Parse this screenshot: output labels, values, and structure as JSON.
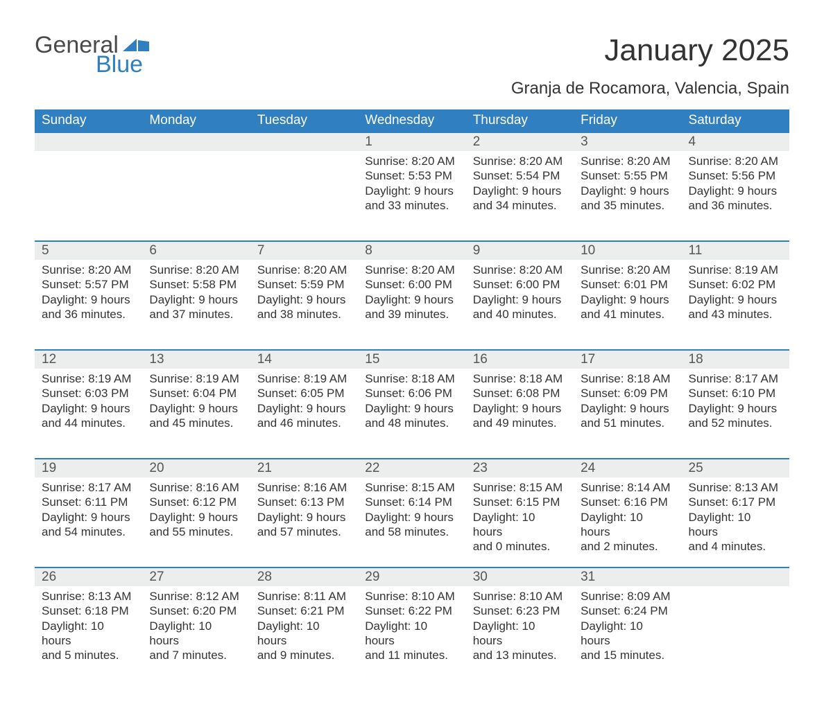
{
  "brand": {
    "word1": "General",
    "word2": "Blue",
    "accent_color": "#2f7fc1",
    "text_color": "#4a4a4a"
  },
  "header": {
    "title": "January 2025",
    "location": "Granja de Rocamora, Valencia, Spain"
  },
  "styling": {
    "page_bg": "#ffffff",
    "header_bar_bg": "#2f7fc1",
    "header_bar_text": "#ffffff",
    "daynum_bg": "#eceded",
    "daynum_border": "#2f7fc1",
    "body_text": "#333333",
    "title_fontsize": 44,
    "subtitle_fontsize": 24,
    "th_fontsize": 19,
    "cell_fontsize": 17
  },
  "weekdays": [
    "Sunday",
    "Monday",
    "Tuesday",
    "Wednesday",
    "Thursday",
    "Friday",
    "Saturday"
  ],
  "weeks": [
    [
      null,
      null,
      null,
      {
        "n": "1",
        "sr": "Sunrise: 8:20 AM",
        "ss": "Sunset: 5:53 PM",
        "d1": "Daylight: 9 hours",
        "d2": "and 33 minutes."
      },
      {
        "n": "2",
        "sr": "Sunrise: 8:20 AM",
        "ss": "Sunset: 5:54 PM",
        "d1": "Daylight: 9 hours",
        "d2": "and 34 minutes."
      },
      {
        "n": "3",
        "sr": "Sunrise: 8:20 AM",
        "ss": "Sunset: 5:55 PM",
        "d1": "Daylight: 9 hours",
        "d2": "and 35 minutes."
      },
      {
        "n": "4",
        "sr": "Sunrise: 8:20 AM",
        "ss": "Sunset: 5:56 PM",
        "d1": "Daylight: 9 hours",
        "d2": "and 36 minutes."
      }
    ],
    [
      {
        "n": "5",
        "sr": "Sunrise: 8:20 AM",
        "ss": "Sunset: 5:57 PM",
        "d1": "Daylight: 9 hours",
        "d2": "and 36 minutes."
      },
      {
        "n": "6",
        "sr": "Sunrise: 8:20 AM",
        "ss": "Sunset: 5:58 PM",
        "d1": "Daylight: 9 hours",
        "d2": "and 37 minutes."
      },
      {
        "n": "7",
        "sr": "Sunrise: 8:20 AM",
        "ss": "Sunset: 5:59 PM",
        "d1": "Daylight: 9 hours",
        "d2": "and 38 minutes."
      },
      {
        "n": "8",
        "sr": "Sunrise: 8:20 AM",
        "ss": "Sunset: 6:00 PM",
        "d1": "Daylight: 9 hours",
        "d2": "and 39 minutes."
      },
      {
        "n": "9",
        "sr": "Sunrise: 8:20 AM",
        "ss": "Sunset: 6:00 PM",
        "d1": "Daylight: 9 hours",
        "d2": "and 40 minutes."
      },
      {
        "n": "10",
        "sr": "Sunrise: 8:20 AM",
        "ss": "Sunset: 6:01 PM",
        "d1": "Daylight: 9 hours",
        "d2": "and 41 minutes."
      },
      {
        "n": "11",
        "sr": "Sunrise: 8:19 AM",
        "ss": "Sunset: 6:02 PM",
        "d1": "Daylight: 9 hours",
        "d2": "and 43 minutes."
      }
    ],
    [
      {
        "n": "12",
        "sr": "Sunrise: 8:19 AM",
        "ss": "Sunset: 6:03 PM",
        "d1": "Daylight: 9 hours",
        "d2": "and 44 minutes."
      },
      {
        "n": "13",
        "sr": "Sunrise: 8:19 AM",
        "ss": "Sunset: 6:04 PM",
        "d1": "Daylight: 9 hours",
        "d2": "and 45 minutes."
      },
      {
        "n": "14",
        "sr": "Sunrise: 8:19 AM",
        "ss": "Sunset: 6:05 PM",
        "d1": "Daylight: 9 hours",
        "d2": "and 46 minutes."
      },
      {
        "n": "15",
        "sr": "Sunrise: 8:18 AM",
        "ss": "Sunset: 6:06 PM",
        "d1": "Daylight: 9 hours",
        "d2": "and 48 minutes."
      },
      {
        "n": "16",
        "sr": "Sunrise: 8:18 AM",
        "ss": "Sunset: 6:08 PM",
        "d1": "Daylight: 9 hours",
        "d2": "and 49 minutes."
      },
      {
        "n": "17",
        "sr": "Sunrise: 8:18 AM",
        "ss": "Sunset: 6:09 PM",
        "d1": "Daylight: 9 hours",
        "d2": "and 51 minutes."
      },
      {
        "n": "18",
        "sr": "Sunrise: 8:17 AM",
        "ss": "Sunset: 6:10 PM",
        "d1": "Daylight: 9 hours",
        "d2": "and 52 minutes."
      }
    ],
    [
      {
        "n": "19",
        "sr": "Sunrise: 8:17 AM",
        "ss": "Sunset: 6:11 PM",
        "d1": "Daylight: 9 hours",
        "d2": "and 54 minutes."
      },
      {
        "n": "20",
        "sr": "Sunrise: 8:16 AM",
        "ss": "Sunset: 6:12 PM",
        "d1": "Daylight: 9 hours",
        "d2": "and 55 minutes."
      },
      {
        "n": "21",
        "sr": "Sunrise: 8:16 AM",
        "ss": "Sunset: 6:13 PM",
        "d1": "Daylight: 9 hours",
        "d2": "and 57 minutes."
      },
      {
        "n": "22",
        "sr": "Sunrise: 8:15 AM",
        "ss": "Sunset: 6:14 PM",
        "d1": "Daylight: 9 hours",
        "d2": "and 58 minutes."
      },
      {
        "n": "23",
        "sr": "Sunrise: 8:15 AM",
        "ss": "Sunset: 6:15 PM",
        "d1": "Daylight: 10 hours",
        "d2": "and 0 minutes."
      },
      {
        "n": "24",
        "sr": "Sunrise: 8:14 AM",
        "ss": "Sunset: 6:16 PM",
        "d1": "Daylight: 10 hours",
        "d2": "and 2 minutes."
      },
      {
        "n": "25",
        "sr": "Sunrise: 8:13 AM",
        "ss": "Sunset: 6:17 PM",
        "d1": "Daylight: 10 hours",
        "d2": "and 4 minutes."
      }
    ],
    [
      {
        "n": "26",
        "sr": "Sunrise: 8:13 AM",
        "ss": "Sunset: 6:18 PM",
        "d1": "Daylight: 10 hours",
        "d2": "and 5 minutes."
      },
      {
        "n": "27",
        "sr": "Sunrise: 8:12 AM",
        "ss": "Sunset: 6:20 PM",
        "d1": "Daylight: 10 hours",
        "d2": "and 7 minutes."
      },
      {
        "n": "28",
        "sr": "Sunrise: 8:11 AM",
        "ss": "Sunset: 6:21 PM",
        "d1": "Daylight: 10 hours",
        "d2": "and 9 minutes."
      },
      {
        "n": "29",
        "sr": "Sunrise: 8:10 AM",
        "ss": "Sunset: 6:22 PM",
        "d1": "Daylight: 10 hours",
        "d2": "and 11 minutes."
      },
      {
        "n": "30",
        "sr": "Sunrise: 8:10 AM",
        "ss": "Sunset: 6:23 PM",
        "d1": "Daylight: 10 hours",
        "d2": "and 13 minutes."
      },
      {
        "n": "31",
        "sr": "Sunrise: 8:09 AM",
        "ss": "Sunset: 6:24 PM",
        "d1": "Daylight: 10 hours",
        "d2": "and 15 minutes."
      },
      null
    ]
  ]
}
